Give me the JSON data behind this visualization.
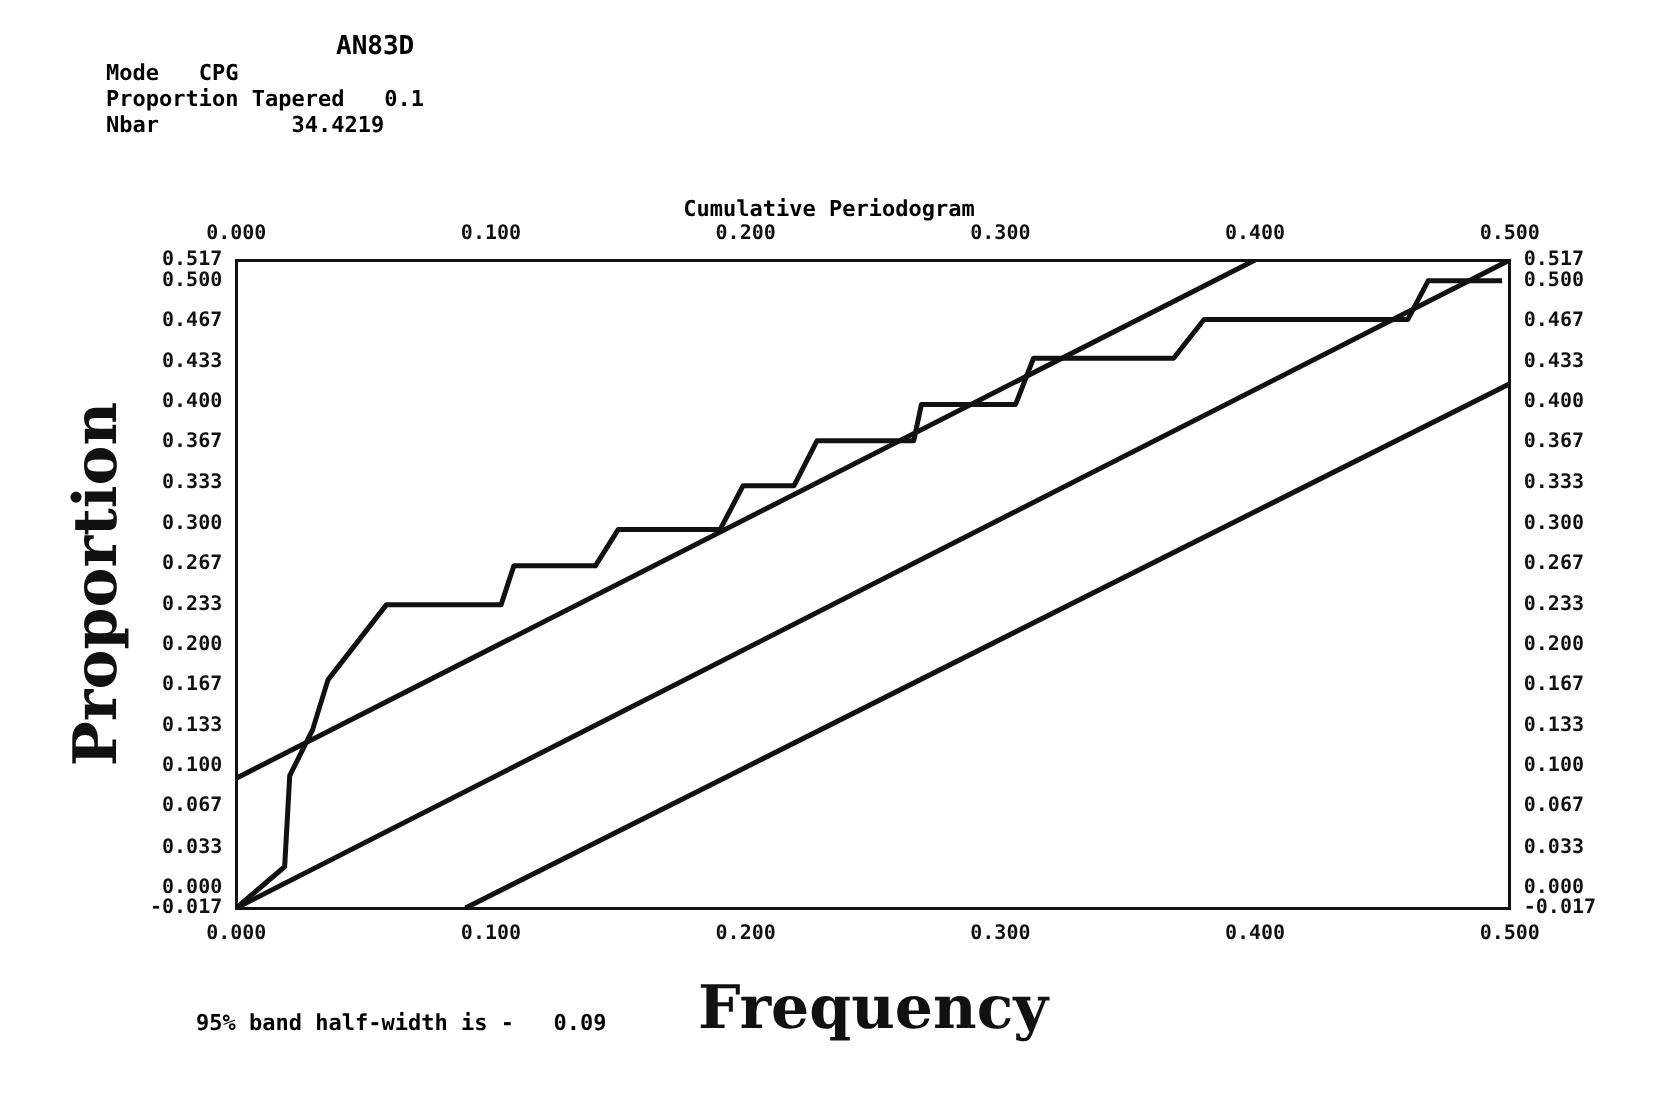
{
  "chart_data": {
    "type": "line",
    "title": "Cumulative Periodogram",
    "subtitle": "AN83D",
    "xlabel": "Frequency",
    "ylabel": "Proportion",
    "annotations": [
      "Mode   CPG",
      "Proportion Tapered   0.1",
      "Nbar          34.4219",
      "95% band half-width is -   0.09"
    ],
    "series": [
      {
        "color": "#111111",
        "x": [
          0,
          0.019,
          0.021,
          0.03,
          0.036,
          0.059,
          0.104,
          0.109,
          0.141,
          0.15,
          0.19,
          0.199,
          0.219,
          0.228,
          0.266,
          0.269,
          0.306,
          0.313,
          0.368,
          0.38,
          0.46,
          0.468,
          0.497
        ],
        "values": [
          -0.017,
          0.017,
          0.092,
          0.13,
          0.171,
          0.233,
          0.233,
          0.265,
          0.265,
          0.295,
          0.295,
          0.331,
          0.331,
          0.368,
          0.368,
          0.398,
          0.398,
          0.436,
          0.436,
          0.468,
          0.468,
          0.5,
          0.5
        ]
      },
      {
        "color": "#111111",
        "x": [
          0,
          0.4
        ],
        "values": [
          0.09,
          0.517
        ]
      },
      {
        "color": "#111111",
        "x": [
          0,
          0.5
        ],
        "values": [
          -0.017,
          0.517
        ]
      },
      {
        "color": "#111111",
        "x": [
          0.09,
          0.5
        ],
        "values": [
          -0.017,
          0.415
        ]
      }
    ],
    "xlim": [
      0,
      0.5
    ],
    "xticks": [
      {
        "value": 0,
        "label": "0.000"
      },
      {
        "value": 0.1,
        "label": "0.100"
      },
      {
        "value": 0.2,
        "label": "0.200"
      },
      {
        "value": 0.3,
        "label": "0.300"
      },
      {
        "value": 0.4,
        "label": "0.400"
      },
      {
        "value": 0.5,
        "label": "0.500"
      }
    ],
    "x2lim": [
      0,
      0.5
    ],
    "x2ticks": [
      {
        "value": 0,
        "label": "0.000"
      },
      {
        "value": 0.1,
        "label": "0.100"
      },
      {
        "value": 0.2,
        "label": "0.200"
      },
      {
        "value": 0.3,
        "label": "0.300"
      },
      {
        "value": 0.4,
        "label": "0.400"
      },
      {
        "value": 0.5,
        "label": "0.500"
      }
    ],
    "ylim": [
      -0.017,
      0.517
    ],
    "yticks": [
      {
        "value": -0.017,
        "label": "-0.017"
      },
      {
        "value": 0,
        "label": "0.000"
      },
      {
        "value": 0.033,
        "label": "0.033"
      },
      {
        "value": 0.067,
        "label": "0.067"
      },
      {
        "value": 0.1,
        "label": "0.100"
      },
      {
        "value": 0.133,
        "label": "0.133"
      },
      {
        "value": 0.167,
        "label": "0.167"
      },
      {
        "value": 0.2,
        "label": "0.200"
      },
      {
        "value": 0.233,
        "label": "0.233"
      },
      {
        "value": 0.267,
        "label": "0.267"
      },
      {
        "value": 0.3,
        "label": "0.300"
      },
      {
        "value": 0.333,
        "label": "0.333"
      },
      {
        "value": 0.367,
        "label": "0.367"
      },
      {
        "value": 0.4,
        "label": "0.400"
      },
      {
        "value": 0.433,
        "label": "0.433"
      },
      {
        "value": 0.467,
        "label": "0.467"
      },
      {
        "value": 0.5,
        "label": "0.500"
      },
      {
        "value": 0.517,
        "label": "0.517"
      }
    ],
    "y2lim": [
      -0.017,
      0.517
    ],
    "y2ticks": [
      {
        "value": -0.017,
        "label": "-0.017"
      },
      {
        "value": 0,
        "label": "0.000"
      },
      {
        "value": 0.033,
        "label": "0.033"
      },
      {
        "value": 0.067,
        "label": "0.067"
      },
      {
        "value": 0.1,
        "label": "0.100"
      },
      {
        "value": 0.133,
        "label": "0.133"
      },
      {
        "value": 0.167,
        "label": "0.167"
      },
      {
        "value": 0.2,
        "label": "0.200"
      },
      {
        "value": 0.233,
        "label": "0.233"
      },
      {
        "value": 0.267,
        "label": "0.267"
      },
      {
        "value": 0.3,
        "label": "0.300"
      },
      {
        "value": 0.333,
        "label": "0.333"
      },
      {
        "value": 0.367,
        "label": "0.367"
      },
      {
        "value": 0.4,
        "label": "0.400"
      },
      {
        "value": 0.433,
        "label": "0.433"
      },
      {
        "value": 0.467,
        "label": "0.467"
      },
      {
        "value": 0.5,
        "label": "0.500"
      },
      {
        "value": 0.517,
        "label": "0.517"
      }
    ],
    "grid": false,
    "legend": false,
    "marker": "none",
    "line_style": "solid"
  }
}
